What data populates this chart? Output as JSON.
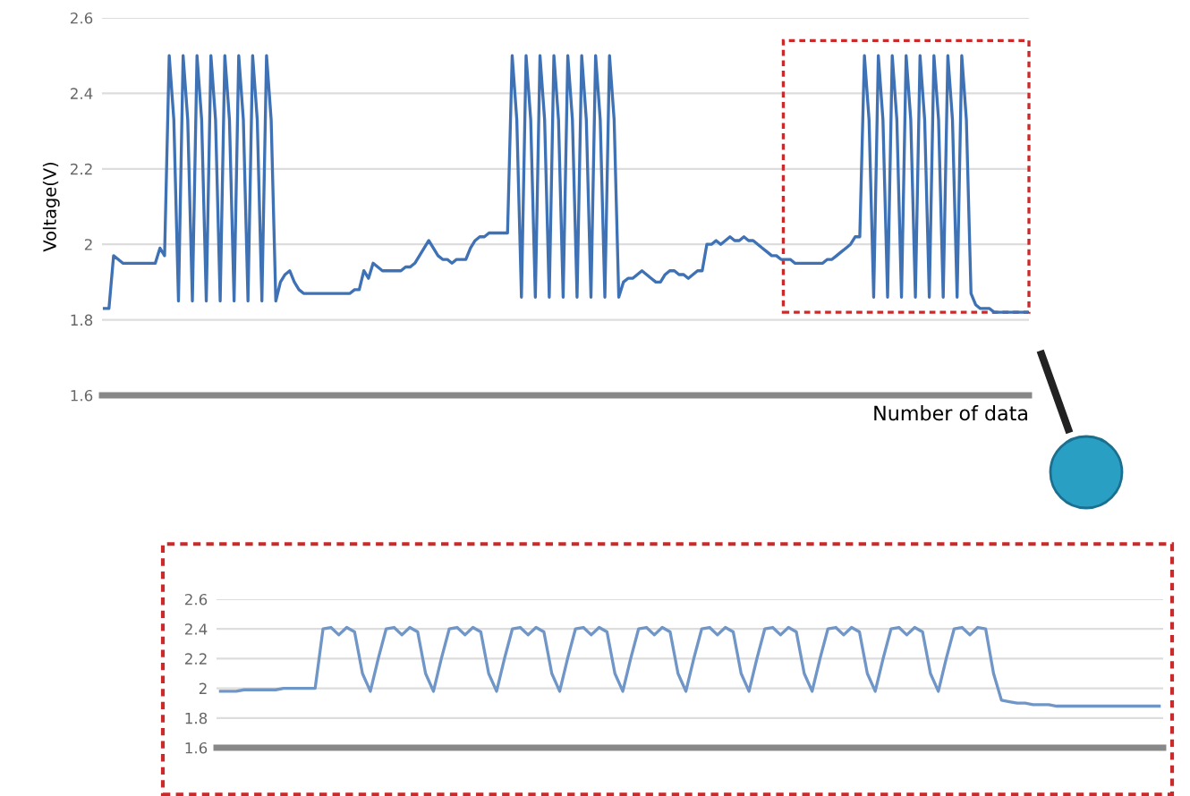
{
  "chart_data": [
    {
      "type": "line",
      "ylabel": "Voltage(V)",
      "xlabel": "Number of data",
      "categories": [
        null,
        null,
        null,
        null,
        null,
        null,
        null,
        null,
        null,
        null,
        null,
        null,
        null,
        null,
        null,
        null,
        null,
        null,
        null,
        null,
        null,
        null,
        null,
        null,
        null,
        null,
        null,
        null,
        null,
        null,
        null,
        null,
        null,
        null,
        null,
        null,
        null,
        null,
        null,
        null,
        null,
        null,
        null,
        null,
        null,
        null,
        null,
        null,
        null,
        null,
        null,
        null,
        null,
        null,
        null,
        null,
        null,
        null,
        null,
        null,
        null,
        null,
        null,
        null,
        null,
        null,
        null,
        null,
        null,
        null,
        null,
        null,
        null,
        null,
        null,
        null,
        null,
        null,
        null,
        null,
        null,
        null,
        null,
        null,
        null,
        null,
        null,
        null,
        null,
        null,
        null,
        null,
        null,
        null,
        null,
        null,
        null,
        null,
        null,
        null,
        null,
        null,
        null,
        null,
        null,
        null,
        null,
        null,
        null,
        null,
        null,
        null,
        null,
        null,
        null,
        null,
        null,
        null,
        null,
        null,
        null,
        null,
        null,
        null,
        null,
        null,
        null,
        null,
        null,
        null,
        null,
        null,
        null,
        null,
        null,
        null,
        null,
        null,
        null,
        null,
        null,
        null,
        null,
        null,
        null,
        null,
        null,
        null,
        null,
        null,
        null,
        null,
        null,
        null,
        null,
        null,
        null,
        null,
        null,
        null,
        null,
        null,
        null,
        null,
        null,
        null,
        null,
        null,
        null,
        null,
        null,
        null,
        null,
        null,
        null,
        null,
        null,
        null,
        null,
        null,
        null,
        null,
        null,
        null,
        null,
        null,
        null,
        null,
        null,
        null,
        null,
        null,
        null,
        null,
        null,
        null,
        null,
        null,
        null,
        null
      ],
      "series": [
        {
          "color": "#3f72b5",
          "values": [
            1.83,
            1.83,
            1.97,
            1.96,
            1.95,
            1.95,
            1.95,
            1.95,
            1.95,
            1.95,
            1.95,
            1.95,
            1.99,
            1.97,
            2.5,
            2.33,
            1.85,
            2.5,
            2.33,
            1.85,
            2.5,
            2.33,
            1.85,
            2.5,
            2.33,
            1.85,
            2.5,
            2.33,
            1.85,
            2.5,
            2.33,
            1.85,
            2.5,
            2.33,
            1.85,
            2.5,
            2.33,
            1.85,
            1.9,
            1.92,
            1.93,
            1.9,
            1.88,
            1.87,
            1.87,
            1.87,
            1.87,
            1.87,
            1.87,
            1.87,
            1.87,
            1.87,
            1.87,
            1.87,
            1.88,
            1.88,
            1.93,
            1.91,
            1.95,
            1.94,
            1.93,
            1.93,
            1.93,
            1.93,
            1.93,
            1.94,
            1.94,
            1.95,
            1.97,
            1.99,
            2.01,
            1.99,
            1.97,
            1.96,
            1.96,
            1.95,
            1.96,
            1.96,
            1.96,
            1.99,
            2.01,
            2.02,
            2.02,
            2.03,
            2.03,
            2.03,
            2.03,
            2.03,
            2.5,
            2.33,
            1.86,
            2.5,
            2.33,
            1.86,
            2.5,
            2.33,
            1.86,
            2.5,
            2.33,
            1.86,
            2.5,
            2.33,
            1.86,
            2.5,
            2.33,
            1.86,
            2.5,
            2.33,
            1.86,
            2.5,
            2.33,
            1.86,
            1.9,
            1.91,
            1.91,
            1.92,
            1.93,
            1.92,
            1.91,
            1.9,
            1.9,
            1.92,
            1.93,
            1.93,
            1.92,
            1.92,
            1.91,
            1.92,
            1.93,
            1.93,
            2.0,
            2.0,
            2.01,
            2.0,
            2.01,
            2.02,
            2.01,
            2.01,
            2.02,
            2.01,
            2.01,
            2.0,
            1.99,
            1.98,
            1.97,
            1.97,
            1.96,
            1.96,
            1.96,
            1.95,
            1.95,
            1.95,
            1.95,
            1.95,
            1.95,
            1.95,
            1.96,
            1.96,
            1.97,
            1.98,
            1.99,
            2.0,
            2.02,
            2.02,
            2.5,
            2.33,
            1.86,
            2.5,
            2.33,
            1.86,
            2.5,
            2.33,
            1.86,
            2.5,
            2.33,
            1.86,
            2.5,
            2.33,
            1.86,
            2.5,
            2.33,
            1.86,
            2.5,
            2.33,
            1.86,
            2.5,
            2.33,
            1.87,
            1.84,
            1.83,
            1.83,
            1.83,
            1.82,
            1.82,
            1.82,
            1.82,
            1.82,
            1.82,
            1.82,
            1.82
          ]
        }
      ],
      "ylim": [
        1.6,
        2.6
      ],
      "yticks": [
        1.6,
        1.8,
        2,
        2.2,
        2.4,
        2.6
      ],
      "grid": "y",
      "tick_labels": "y"
    },
    {
      "type": "line",
      "categories": [
        null,
        null,
        null,
        null,
        null,
        null,
        null,
        null,
        null,
        null,
        null,
        null,
        null,
        null,
        null,
        null,
        null,
        null,
        null,
        null,
        null,
        null,
        null,
        null,
        null,
        null,
        null,
        null,
        null,
        null,
        null,
        null,
        null,
        null,
        null,
        null,
        null,
        null,
        null,
        null,
        null,
        null,
        null,
        null,
        null,
        null,
        null,
        null,
        null,
        null,
        null,
        null,
        null,
        null,
        null,
        null,
        null,
        null,
        null,
        null,
        null,
        null,
        null,
        null,
        null,
        null,
        null,
        null,
        null,
        null,
        null,
        null,
        null,
        null,
        null,
        null,
        null,
        null,
        null,
        null,
        null,
        null,
        null,
        null,
        null,
        null,
        null,
        null,
        null,
        null,
        null,
        null,
        null,
        null,
        null,
        null,
        null,
        null,
        null,
        null,
        null,
        null,
        null,
        null,
        null,
        null,
        null,
        null,
        null,
        null,
        null,
        null,
        null,
        null,
        null,
        null,
        null,
        null,
        null,
        null
      ],
      "series": [
        {
          "color": "#7096c8",
          "values": [
            1.98,
            1.98,
            1.98,
            1.99,
            1.99,
            1.99,
            1.99,
            1.99,
            2.0,
            2.0,
            2.0,
            2.0,
            2.0,
            2.4,
            2.41,
            2.36,
            2.41,
            2.38,
            2.1,
            1.98,
            2.2,
            2.4,
            2.41,
            2.36,
            2.41,
            2.38,
            2.1,
            1.98,
            2.2,
            2.4,
            2.41,
            2.36,
            2.41,
            2.38,
            2.1,
            1.98,
            2.2,
            2.4,
            2.41,
            2.36,
            2.41,
            2.38,
            2.1,
            1.98,
            2.2,
            2.4,
            2.41,
            2.36,
            2.41,
            2.38,
            2.1,
            1.98,
            2.2,
            2.4,
            2.41,
            2.36,
            2.41,
            2.38,
            2.1,
            1.98,
            2.2,
            2.4,
            2.41,
            2.36,
            2.41,
            2.38,
            2.1,
            1.98,
            2.2,
            2.4,
            2.41,
            2.36,
            2.41,
            2.38,
            2.1,
            1.98,
            2.2,
            2.4,
            2.41,
            2.36,
            2.41,
            2.38,
            2.1,
            1.98,
            2.2,
            2.4,
            2.41,
            2.36,
            2.41,
            2.38,
            2.1,
            1.98,
            2.2,
            2.4,
            2.41,
            2.36,
            2.41,
            2.4,
            2.1,
            1.92,
            1.91,
            1.9,
            1.9,
            1.89,
            1.89,
            1.89,
            1.88,
            1.88,
            1.88,
            1.88,
            1.88,
            1.88,
            1.88,
            1.88,
            1.88,
            1.88,
            1.88,
            1.88,
            1.88,
            1.88
          ]
        }
      ],
      "ylim": [
        1.6,
        2.6
      ],
      "yticks": [
        1.6,
        1.8,
        2,
        2.2,
        2.4,
        2.6
      ],
      "grid": "y",
      "tick_labels": "y"
    }
  ]
}
